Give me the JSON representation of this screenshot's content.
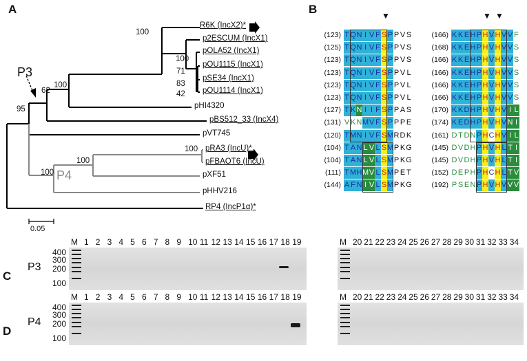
{
  "panels": {
    "A": "A",
    "B": "B",
    "C": "C",
    "D": "D"
  },
  "tree": {
    "scale_label": "0.05",
    "p3_label": "P3",
    "p4_label": "P4",
    "taxa": [
      {
        "id": "r6k",
        "label": "R6K (IncX2)*",
        "underline": true,
        "arrow": true
      },
      {
        "id": "p2escum",
        "label": "p2ESCUM (IncX1)",
        "underline": true
      },
      {
        "id": "pola52",
        "label": "pOLA52 (IncX1)",
        "underline": true
      },
      {
        "id": "pou1115",
        "label": "pOU1115 (IncX1)",
        "underline": true
      },
      {
        "id": "pse34",
        "label": "pSE34 (IncX1)",
        "underline": true
      },
      {
        "id": "pou1114",
        "label": "pOU1114 (IncX1)",
        "underline": true
      },
      {
        "id": "phi4320",
        "label": "pHI4320",
        "underline": false
      },
      {
        "id": "pbs512",
        "label": "pBS512_33 (IncX4)",
        "underline": true
      },
      {
        "id": "pvt745",
        "label": "pVT745",
        "underline": false
      },
      {
        "id": "pra3",
        "label": "pRA3 (IncU)*",
        "underline": true,
        "arrow": true
      },
      {
        "id": "pfbaot6",
        "label": "pFBAOT6 (IncU)",
        "underline": true
      },
      {
        "id": "pxf51",
        "label": "pXF51",
        "underline": false
      },
      {
        "id": "phhv216",
        "label": "pHHV216",
        "underline": false
      },
      {
        "id": "rp4",
        "label": "RP4 (IncP1α)*",
        "underline": true
      }
    ],
    "bootstraps": [
      "100",
      "100",
      "71",
      "83",
      "42",
      "100",
      "62",
      "95",
      "100",
      "100",
      "100"
    ]
  },
  "alignment": {
    "left_block": [
      {
        "pos": "(123)",
        "seq": "TQNIVFSPPVS"
      },
      {
        "pos": "(125)",
        "seq": "TQNIVFSPPVS"
      },
      {
        "pos": "(123)",
        "seq": "TQNIVFSPPVS"
      },
      {
        "pos": "(123)",
        "seq": "TQNIVFSPPVL"
      },
      {
        "pos": "(123)",
        "seq": "TQNIVFSPPVL"
      },
      {
        "pos": "(123)",
        "seq": "TQNIVFSPPVL"
      },
      {
        "pos": "(127)",
        "seq": "TKNIIFSPPAS"
      },
      {
        "pos": "(131)",
        "seq": "VKNMVFSPPPE"
      },
      {
        "pos": "(120)",
        "seq": "TMNIVFSMRDK"
      },
      {
        "pos": "(104)",
        "seq": "TANLVLSMPKG"
      },
      {
        "pos": "(104)",
        "seq": "TANLVLSMPKG"
      },
      {
        "pos": "(111)",
        "seq": "TMHMVLSMPET"
      },
      {
        "pos": "(144)",
        "seq": "AFNIVLSMPKG"
      }
    ],
    "right_block": [
      {
        "pos": "(166)",
        "seq": "KKEHPHVHVVF"
      },
      {
        "pos": "(168)",
        "seq": "KKEHPHVHVVS"
      },
      {
        "pos": "(166)",
        "seq": "KKEHPHVHVVS"
      },
      {
        "pos": "(166)",
        "seq": "KKEHPHVHVVS"
      },
      {
        "pos": "(166)",
        "seq": "KKEHPHVHVVS"
      },
      {
        "pos": "(166)",
        "seq": "KKEHPHVHVVS"
      },
      {
        "pos": "(170)",
        "seq": "KKDHPHVHVIL"
      },
      {
        "pos": "(174)",
        "seq": "KEDHPHVHVNI"
      },
      {
        "pos": "(161)",
        "seq": "DTDNPHCHVIL"
      },
      {
        "pos": "(145)",
        "seq": "DVDHPHVHLTI"
      },
      {
        "pos": "(145)",
        "seq": "DVDHPHVHLTI"
      },
      {
        "pos": "(152)",
        "seq": "DEPHPHCHLTV"
      },
      {
        "pos": "(192)",
        "seq": "PSENPHVHVVV"
      }
    ],
    "marker_glyph": "▼"
  },
  "gels": {
    "ladder_values": [
      "400",
      "300",
      "200",
      "100"
    ],
    "marker_lane": "M",
    "lanes_left": [
      "1",
      "2",
      "3",
      "4",
      "5",
      "6",
      "7",
      "8",
      "9",
      "10",
      "11",
      "12",
      "13",
      "14",
      "15",
      "16",
      "17",
      "18",
      "19"
    ],
    "lanes_right": [
      "20",
      "21",
      "22",
      "23",
      "24",
      "25",
      "26",
      "27",
      "28",
      "29",
      "30",
      "31",
      "32",
      "33",
      "34"
    ],
    "rows": [
      {
        "id": "C",
        "label": "P3",
        "positive_lane": "18"
      },
      {
        "id": "D",
        "label": "P4",
        "positive_lane": "19"
      }
    ]
  },
  "colors": {
    "cyan": "#2fb1d8",
    "yellow": "#f6ef1a",
    "green": "#2a8c3c",
    "blue_text": "#1b2e9e",
    "red_text": "#d02020",
    "green_text": "#2a8c3c",
    "tree_gray": "#888888"
  }
}
